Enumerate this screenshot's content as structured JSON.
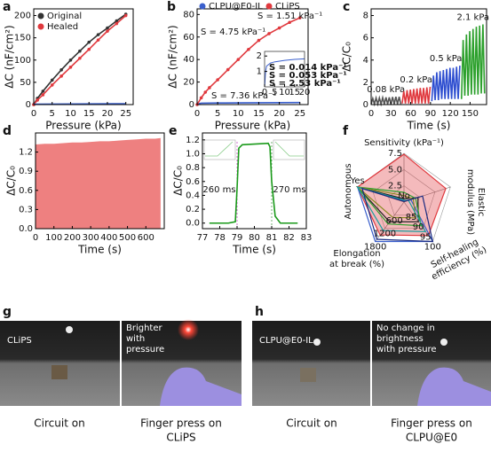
{
  "chart_data": [
    {
      "panel": "a",
      "type": "line",
      "xlabel": "Pressure (kPa)",
      "ylabel": "ΔC (nF/cm²)",
      "xlim": [
        0,
        27
      ],
      "xticks": [
        0,
        5,
        10,
        15,
        20,
        25
      ],
      "ylim": [
        0,
        215
      ],
      "yticks": [
        0,
        50,
        100,
        150,
        200
      ],
      "legend": "upper left",
      "series": [
        {
          "name": "Original",
          "color": "#333333",
          "marker": true,
          "x": [
            0,
            1,
            2.5,
            5,
            7.5,
            10,
            12.5,
            15,
            17.5,
            20,
            22.5,
            25
          ],
          "values": [
            0,
            14,
            30,
            55,
            78,
            100,
            120,
            140,
            157,
            172,
            188,
            203
          ]
        },
        {
          "name": "Healed",
          "color": "#e0393e",
          "marker": true,
          "x": [
            0,
            1,
            2.5,
            5,
            7.5,
            10,
            12.5,
            15,
            17.5,
            20,
            22.5,
            25
          ],
          "values": [
            0,
            10,
            22,
            44,
            64,
            84,
            104,
            124,
            145,
            165,
            182,
            200
          ]
        },
        {
          "color": "#3a5fcd",
          "x": [
            0,
            25
          ],
          "values": [
            1,
            2
          ]
        }
      ]
    },
    {
      "panel": "b",
      "type": "line",
      "xlabel": "Pressure (kPa)",
      "ylabel": "ΔC (nF/cm²)",
      "xlim": [
        0,
        27
      ],
      "xticks": [
        0,
        5,
        10,
        15,
        20,
        25
      ],
      "ylim": [
        0,
        85
      ],
      "yticks": [
        0,
        20,
        40,
        60,
        80
      ],
      "legend": "top",
      "series": [
        {
          "name": "CLPU@E0-IL",
          "color": "#3a5fcd",
          "x": [
            0,
            0.5,
            1,
            5,
            10,
            15,
            20,
            25
          ],
          "values": [
            0,
            0.9,
            1.2,
            1.4,
            1.5,
            1.6,
            1.7,
            1.8
          ]
        },
        {
          "name": "CLiPS",
          "color": "#e0393e",
          "marker": true,
          "x": [
            0,
            1,
            2,
            3,
            5,
            7.5,
            10,
            12.5,
            15,
            17.5,
            20,
            22.5,
            25
          ],
          "values": [
            0,
            6,
            11,
            15,
            22,
            31,
            40,
            49,
            57,
            63,
            68,
            73,
            77
          ]
        }
      ],
      "annotations": [
        {
          "text": "S = 1.51 kPa⁻¹",
          "color": "#2ca02c"
        },
        {
          "text": "S = 4.75 kPa⁻¹",
          "color": "#4a6fd4"
        },
        {
          "text": "S = 7.36 kPa⁻¹",
          "color": "#e0393e"
        }
      ]
    },
    {
      "type": "line",
      "xlim": [
        0,
        20
      ],
      "xticks": [
        0,
        5,
        10,
        15,
        20
      ],
      "ylim": [
        0,
        2.3
      ],
      "yticks": [
        1,
        2
      ],
      "series": [
        {
          "color": "#3a5fcd",
          "x": [
            0,
            0.5,
            1,
            3,
            5,
            10,
            15,
            20
          ],
          "values": [
            0,
            1.0,
            1.35,
            1.55,
            1.62,
            1.72,
            1.78,
            1.82
          ]
        }
      ],
      "annotations": [
        {
          "text": "S = 0.014 kPa⁻¹",
          "color": "#a07c00"
        },
        {
          "text": "S = 0.053 kPa⁻¹",
          "color": "#333333"
        },
        {
          "text": "S = 2.53 kPa⁻¹",
          "color": "#2ca02c"
        }
      ]
    },
    {
      "panel": "c",
      "type": "line",
      "xlabel": "Time (s)",
      "ylabel": "ΔC/C₀",
      "legend": "inline",
      "xlim": [
        0,
        175
      ],
      "xticks": [
        0,
        30,
        60,
        90,
        120,
        150
      ],
      "ylim": [
        0,
        8.6
      ],
      "yticks": [
        0,
        2,
        4,
        6,
        8
      ],
      "series": [
        {
          "name": "0.08 kPa",
          "color": "#555555",
          "x": [
            0,
            2.5,
            5,
            7.5,
            10,
            12.5,
            15,
            17.5,
            20,
            22.5,
            25,
            27.5,
            30,
            32.5,
            35,
            37.5,
            40,
            42.5,
            45
          ],
          "values": [
            0.05,
            0.55,
            0.05,
            0.6,
            0.05,
            0.6,
            0.05,
            0.62,
            0.05,
            0.65,
            0.05,
            0.65,
            0.05,
            0.68,
            0.05,
            0.7,
            0.05,
            0.7,
            0.05
          ]
        },
        {
          "name": "0.2 kPa",
          "color": "#e0393e",
          "x": [
            47,
            49.5,
            52,
            54.5,
            57,
            59.5,
            62,
            64.5,
            67,
            69.5,
            72,
            74.5,
            77,
            79.5,
            82,
            84.5,
            87,
            89.5
          ],
          "values": [
            0.1,
            1.2,
            0.1,
            1.3,
            0.1,
            1.35,
            0.1,
            1.4,
            0.1,
            1.45,
            0.1,
            1.5,
            0.1,
            1.5,
            0.1,
            1.55,
            0.1,
            1.6
          ]
        },
        {
          "name": "0.5 kPa",
          "color": "#2f4fd0",
          "x": [
            92,
            94.5,
            97,
            99.5,
            102,
            104.5,
            107,
            109.5,
            112,
            114.5,
            117,
            119.5,
            122,
            124.5,
            127,
            129.5,
            132,
            134.5
          ],
          "values": [
            0.3,
            2.6,
            0.4,
            2.9,
            0.4,
            3.0,
            0.5,
            3.1,
            0.5,
            3.2,
            0.5,
            3.3,
            0.5,
            3.3,
            0.5,
            3.4,
            0.5,
            3.5
          ]
        },
        {
          "name": "2.1 kPa",
          "color": "#2ca02c",
          "x": [
            137,
            139.5,
            142,
            144.5,
            147,
            149.5,
            152,
            154.5,
            157,
            159.5,
            162,
            164.5,
            167,
            169.5,
            172
          ],
          "values": [
            0.5,
            5.8,
            0.8,
            6.3,
            0.8,
            6.6,
            0.9,
            6.8,
            0.9,
            7.0,
            0.9,
            7.1,
            1.0,
            7.2,
            1.0
          ]
        }
      ]
    },
    {
      "panel": "d",
      "type": "area",
      "xlabel": "Time (s)",
      "ylabel": "ΔC/C₀",
      "xlim": [
        0,
        700
      ],
      "xticks": [
        0,
        100,
        200,
        300,
        400,
        500,
        600
      ],
      "ylim": [
        0,
        1.5
      ],
      "yticks": [
        {
          "value": 0,
          "label": "0.0"
        },
        {
          "value": 0.3,
          "label": "0.3"
        },
        {
          "value": 0.6,
          "label": "0.6"
        },
        {
          "value": 0.9,
          "label": "0.9"
        },
        {
          "value": 1.2,
          "label": "1.2"
        }
      ],
      "series": [
        {
          "color": "#ee8080",
          "x": [
            0,
            50,
            100,
            150,
            200,
            250,
            300,
            350,
            400,
            450,
            500,
            550,
            600,
            650,
            680
          ],
          "values": [
            1.32,
            1.33,
            1.33,
            1.34,
            1.35,
            1.35,
            1.36,
            1.37,
            1.37,
            1.38,
            1.39,
            1.4,
            1.41,
            1.41,
            1.42
          ]
        }
      ]
    },
    {
      "panel": "e",
      "type": "line",
      "xlabel": "Time (s)",
      "ylabel": "ΔC/C₀",
      "xlim": [
        77,
        83
      ],
      "xticks": [
        77,
        78,
        79,
        80,
        81,
        82,
        83
      ],
      "ylim": [
        -0.08,
        1.3
      ],
      "yticks": [
        {
          "value": 0,
          "label": "0.0"
        },
        {
          "value": 0.2,
          "label": "0.2"
        },
        {
          "value": 0.4,
          "label": "0.4"
        },
        {
          "value": 0.6,
          "label": "0.6"
        },
        {
          "value": 0.8,
          "label": "0.8"
        },
        {
          "value": 1,
          "label": "1.0"
        },
        {
          "value": 1.2,
          "label": "1.2"
        }
      ],
      "series": [
        {
          "color": "#1a9a1a",
          "x": [
            77.4,
            78.5,
            78.9,
            79.0,
            79.1,
            79.3,
            80.0,
            80.8,
            80.9,
            81.0,
            81.2,
            81.5,
            82.5
          ],
          "values": [
            0,
            0,
            0.02,
            0.5,
            1.08,
            1.13,
            1.14,
            1.15,
            1.1,
            0.6,
            0.1,
            0,
            0
          ]
        }
      ],
      "annotations": [
        {
          "text": "260 ms",
          "color": "#111111"
        },
        {
          "text": "270 ms",
          "color": "#111111"
        }
      ]
    },
    {
      "panel": "f",
      "type": "radar",
      "axes": [
        {
          "label": [
            "Sensitivity (kPa⁻¹)"
          ],
          "lim": [
            0,
            7.5
          ],
          "ticks": [
            2.5,
            {
              "value": 5,
              "label": "5.0"
            },
            7.5
          ]
        },
        {
          "label": [
            "Elastic",
            "modulus (MPa)"
          ],
          "lim": [
            0,
            1
          ]
        },
        {
          "label": [
            "Self-healing",
            "efficiency (%)"
          ],
          "lim": [
            80,
            100
          ],
          "ticks": [
            85,
            90,
            95,
            100
          ]
        },
        {
          "label": [
            "Elongation",
            "at break (%)"
          ],
          "lim": [
            0,
            1800
          ],
          "ticks": [
            600,
            1200,
            1800
          ]
        },
        {
          "label": [
            "Autonomous"
          ],
          "lim": [
            0,
            1
          ],
          "ticks": [
            {
              "value": 0,
              "label": "No"
            },
            {
              "value": 1,
              "label": "Yes"
            }
          ]
        }
      ],
      "series": [
        {
          "color": "#e0393e",
          "fill": true,
          "values": [
            7.36,
            0.9,
            97,
            1500,
            1
          ]
        },
        {
          "color": "#222222",
          "values": [
            0.5,
            0.3,
            90,
            900,
            1
          ]
        },
        {
          "color": "#3a5fcd",
          "values": [
            0.2,
            0.15,
            100,
            1800,
            1
          ]
        },
        {
          "color": "#2ca02c",
          "values": [
            1.5,
            0.25,
            92,
            1000,
            1
          ]
        },
        {
          "color": "#8a8a20",
          "values": [
            1,
            0.2,
            88,
            700,
            1
          ]
        },
        {
          "color": "#1b9e9e",
          "values": [
            0.3,
            0.1,
            95,
            1300,
            1
          ]
        },
        {
          "color": "#1a2a80",
          "values": [
            0.1,
            0.4,
            100,
            1700,
            0.9
          ]
        }
      ]
    }
  ],
  "photos": [
    {
      "panel": "g",
      "left_label": "CLiPS",
      "right_label": [
        "Brighter",
        "with",
        "pressure"
      ],
      "left_caption": "Circuit on",
      "right_caption": [
        "Finger press on",
        "CLiPS"
      ]
    },
    {
      "panel": "h",
      "left_label": "CLPU@E0-IL",
      "right_label": [
        "No change in",
        "brightness",
        "with pressure"
      ],
      "left_caption": "Circuit on",
      "right_caption": [
        "Finger press on",
        "CLPU@E0"
      ]
    }
  ]
}
